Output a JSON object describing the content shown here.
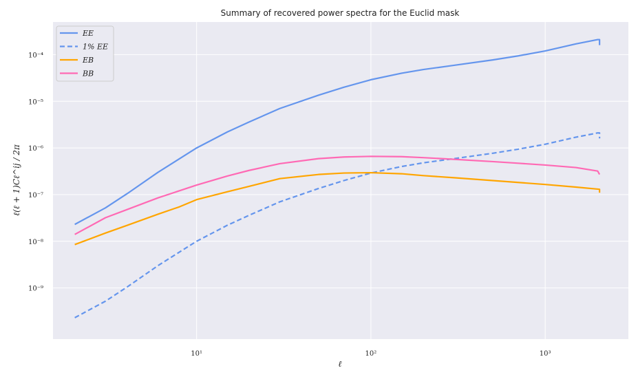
{
  "chart_data": {
    "type": "line",
    "title": "Summary of recovered power spectra for the Euclid mask",
    "xlabel": "ℓ",
    "ylabel": "ℓ(ℓ + 1)Cℓ^ij / 2π",
    "x_scale": "log",
    "y_scale": "log",
    "xlim": [
      1.5,
      3000
    ],
    "ylim": [
      8e-11,
      0.0005
    ],
    "grid": true,
    "legend_position": "top-left",
    "x_ticks": [
      {
        "value": 10,
        "label": "10¹"
      },
      {
        "value": 100,
        "label": "10²"
      },
      {
        "value": 1000,
        "label": "10³"
      }
    ],
    "y_ticks": [
      {
        "value": 1e-09,
        "label": "10⁻⁹"
      },
      {
        "value": 1e-08,
        "label": "10⁻⁸"
      },
      {
        "value": 1e-07,
        "label": "10⁻⁷"
      },
      {
        "value": 1e-06,
        "label": "10⁻⁶"
      },
      {
        "value": 1e-05,
        "label": "10⁻⁵"
      },
      {
        "value": 0.0001,
        "label": "10⁻⁴"
      }
    ],
    "series": [
      {
        "name": "EE",
        "color": "#6495ED",
        "dash": "solid",
        "points": [
          [
            2,
            2.3e-08
          ],
          [
            3,
            5.2e-08
          ],
          [
            4,
            1.05e-07
          ],
          [
            6,
            3e-07
          ],
          [
            10,
            1e-06
          ],
          [
            15,
            2.2e-06
          ],
          [
            20,
            3.6e-06
          ],
          [
            30,
            7e-06
          ],
          [
            50,
            1.35e-05
          ],
          [
            70,
            2e-05
          ],
          [
            100,
            2.9e-05
          ],
          [
            150,
            4e-05
          ],
          [
            200,
            4.8e-05
          ],
          [
            300,
            5.9e-05
          ],
          [
            500,
            7.7e-05
          ],
          [
            700,
            9.4e-05
          ],
          [
            1000,
            0.00012
          ],
          [
            1500,
            0.00017
          ],
          [
            2000,
            0.00021
          ],
          [
            2050,
            0.00021
          ],
          [
            2050,
            0.00016
          ]
        ]
      },
      {
        "name": "1% EE",
        "color": "#6495ED",
        "dash": "dashed",
        "points": [
          [
            2,
            2.3e-10
          ],
          [
            3,
            5.2e-10
          ],
          [
            4,
            1.05e-09
          ],
          [
            6,
            3e-09
          ],
          [
            10,
            1e-08
          ],
          [
            15,
            2.2e-08
          ],
          [
            20,
            3.6e-08
          ],
          [
            30,
            7e-08
          ],
          [
            50,
            1.35e-07
          ],
          [
            70,
            2e-07
          ],
          [
            100,
            2.9e-07
          ],
          [
            150,
            4e-07
          ],
          [
            200,
            4.8e-07
          ],
          [
            300,
            5.9e-07
          ],
          [
            500,
            7.7e-07
          ],
          [
            700,
            9.4e-07
          ],
          [
            1000,
            1.2e-06
          ],
          [
            1500,
            1.7e-06
          ],
          [
            2000,
            2.1e-06
          ],
          [
            2050,
            2.1e-06
          ],
          [
            2050,
            1.6e-06
          ]
        ]
      },
      {
        "name": "EB",
        "color": "#FFA500",
        "dash": "solid",
        "points": [
          [
            2,
            8.5e-09
          ],
          [
            3,
            1.5e-08
          ],
          [
            4,
            2.2e-08
          ],
          [
            6,
            3.8e-08
          ],
          [
            8,
            5.5e-08
          ],
          [
            10,
            7.8e-08
          ],
          [
            15,
            1.15e-07
          ],
          [
            20,
            1.5e-07
          ],
          [
            30,
            2.2e-07
          ],
          [
            50,
            2.7e-07
          ],
          [
            70,
            2.9e-07
          ],
          [
            100,
            2.95e-07
          ],
          [
            150,
            2.8e-07
          ],
          [
            200,
            2.55e-07
          ],
          [
            300,
            2.3e-07
          ],
          [
            500,
            2e-07
          ],
          [
            700,
            1.82e-07
          ],
          [
            1000,
            1.65e-07
          ],
          [
            1500,
            1.45e-07
          ],
          [
            2050,
            1.3e-07
          ],
          [
            2050,
            1.1e-07
          ]
        ]
      },
      {
        "name": "BB",
        "color": "#FF69B4",
        "dash": "solid",
        "points": [
          [
            2,
            1.4e-08
          ],
          [
            3,
            3.2e-08
          ],
          [
            4,
            4.8e-08
          ],
          [
            6,
            8.5e-08
          ],
          [
            10,
            1.6e-07
          ],
          [
            15,
            2.5e-07
          ],
          [
            20,
            3.3e-07
          ],
          [
            30,
            4.6e-07
          ],
          [
            50,
            5.9e-07
          ],
          [
            70,
            6.4e-07
          ],
          [
            100,
            6.6e-07
          ],
          [
            150,
            6.5e-07
          ],
          [
            200,
            6.2e-07
          ],
          [
            300,
            5.7e-07
          ],
          [
            500,
            5.1e-07
          ],
          [
            700,
            4.7e-07
          ],
          [
            1000,
            4.3e-07
          ],
          [
            1500,
            3.8e-07
          ],
          [
            2000,
            3.2e-07
          ],
          [
            2050,
            2.7e-07
          ]
        ]
      }
    ]
  }
}
